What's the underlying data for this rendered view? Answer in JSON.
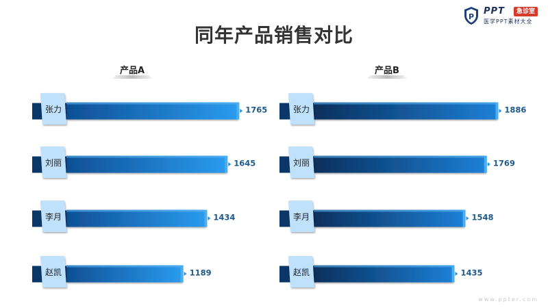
{
  "title": "同年产品销售对比",
  "logo": {
    "brand": "PPT",
    "badge": "急诊室",
    "subtitle": "医学PPT素材大全"
  },
  "footer": {
    "url": "www.ppter.com"
  },
  "colors": {
    "bar_dark": "#0a3a6e",
    "bar_mid": "#125aa6",
    "bar_light": "#2a9bef",
    "label_box": "#bfe1fb",
    "value_text": "#1f5a8f",
    "title_text": "#333333"
  },
  "chart_data": [
    {
      "type": "bar",
      "orientation": "horizontal",
      "title": "产品A",
      "categories": [
        "张力",
        "刘丽",
        "李月",
        "赵凯"
      ],
      "values": [
        1765,
        1645,
        1434,
        1189
      ]
    },
    {
      "type": "bar",
      "orientation": "horizontal",
      "title": "产品B",
      "categories": [
        "张力",
        "刘丽",
        "李月",
        "赵凯"
      ],
      "values": [
        1886,
        1769,
        1548,
        1435
      ]
    }
  ]
}
